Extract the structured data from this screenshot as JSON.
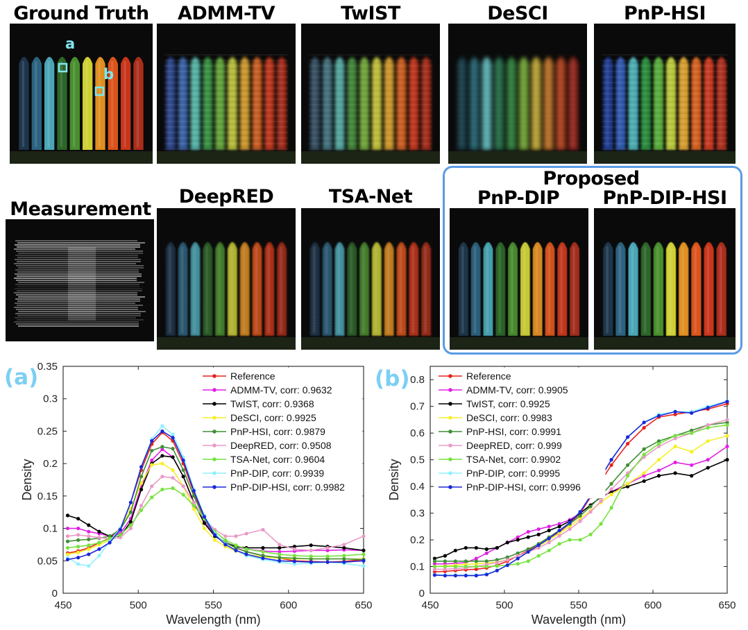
{
  "panels": {
    "ground_truth": "Ground Truth",
    "admm_tv": "ADMM-TV",
    "twist": "TwIST",
    "desci": "DeSCI",
    "pnp_hsi": "PnP-HSI",
    "measurement": "Measurement",
    "deepred": "DeepRED",
    "tsa_net": "TSA-Net",
    "proposed": "Proposed",
    "pnp_dip": "PnP-DIP",
    "pnp_dip_hsi": "PnP-DIP-HSI",
    "marker_a": "a",
    "marker_b": "b"
  },
  "colors": {
    "Reference": "#e8211c",
    "ADMM-TV": "#e020e6",
    "TwIST": "#000000",
    "DeSCI": "#f7ef2a",
    "PnP-HSI": "#3e8f35",
    "DeepRED": "#e99ac6",
    "TSA-Net": "#77e23f",
    "PnP-DIP": "#8ff0ff",
    "PnP-DIP-HSI": "#1a28d8"
  },
  "chart_data": [
    {
      "type": "line",
      "panel_label": "(a)",
      "xlabel": "Wavelength (nm)",
      "ylabel": "Density",
      "xlim": [
        450,
        650
      ],
      "ylim": [
        0,
        0.35
      ],
      "xticks": [
        "450",
        "500",
        "550",
        "600",
        "650"
      ],
      "yticks": [
        "0",
        "0.05",
        "0.1",
        "0.15",
        "0.2",
        "0.25",
        "0.3",
        "0.35"
      ],
      "x": [
        453,
        460,
        467,
        474,
        481,
        488,
        495,
        502,
        509,
        516,
        523,
        530,
        537,
        544,
        551,
        558,
        565,
        572,
        583,
        594,
        604,
        615,
        626,
        637,
        650
      ],
      "legend": [
        "Reference",
        "ADMM-TV, corr: 0.9632",
        "TwIST, corr: 0.9368",
        "DeSCI, corr: 0.9925",
        "PnP-HSI, corr: 0.9879",
        "DeepRED, corr: 0.9508",
        "TSA-Net, corr: 0.9604",
        "PnP-DIP, corr: 0.9939",
        "PnP-DIP-HSI, corr: 0.9982"
      ],
      "series": [
        {
          "name": "Reference",
          "values": [
            0.062,
            0.065,
            0.07,
            0.078,
            0.085,
            0.1,
            0.14,
            0.19,
            0.23,
            0.248,
            0.235,
            0.2,
            0.155,
            0.115,
            0.09,
            0.078,
            0.07,
            0.064,
            0.058,
            0.054,
            0.05,
            0.049,
            0.048,
            0.049,
            0.052
          ]
        },
        {
          "name": "ADMM-TV",
          "values": [
            0.1,
            0.1,
            0.095,
            0.092,
            0.088,
            0.092,
            0.115,
            0.165,
            0.205,
            0.222,
            0.21,
            0.18,
            0.14,
            0.11,
            0.09,
            0.078,
            0.072,
            0.068,
            0.065,
            0.064,
            0.065,
            0.066,
            0.066,
            0.067,
            0.066
          ]
        },
        {
          "name": "TwIST",
          "values": [
            0.12,
            0.115,
            0.105,
            0.095,
            0.088,
            0.088,
            0.11,
            0.16,
            0.2,
            0.212,
            0.21,
            0.18,
            0.14,
            0.108,
            0.088,
            0.078,
            0.072,
            0.07,
            0.07,
            0.07,
            0.072,
            0.074,
            0.072,
            0.07,
            0.066
          ]
        },
        {
          "name": "DeSCI",
          "values": [
            0.06,
            0.063,
            0.068,
            0.075,
            0.082,
            0.098,
            0.13,
            0.17,
            0.198,
            0.2,
            0.19,
            0.165,
            0.13,
            0.1,
            0.082,
            0.072,
            0.065,
            0.06,
            0.056,
            0.054,
            0.053,
            0.053,
            0.053,
            0.053,
            0.053
          ]
        },
        {
          "name": "PnP-HSI",
          "values": [
            0.08,
            0.082,
            0.083,
            0.085,
            0.088,
            0.098,
            0.125,
            0.18,
            0.22,
            0.226,
            0.223,
            0.19,
            0.15,
            0.115,
            0.09,
            0.078,
            0.07,
            0.064,
            0.058,
            0.055,
            0.054,
            0.053,
            0.053,
            0.053,
            0.052
          ]
        },
        {
          "name": "DeepRED",
          "values": [
            0.088,
            0.09,
            0.088,
            0.086,
            0.084,
            0.086,
            0.1,
            0.135,
            0.165,
            0.18,
            0.178,
            0.165,
            0.14,
            0.115,
            0.098,
            0.088,
            0.088,
            0.092,
            0.098,
            0.075,
            0.068,
            0.066,
            0.07,
            0.075,
            0.088
          ]
        },
        {
          "name": "TSA-Net",
          "values": [
            0.07,
            0.072,
            0.074,
            0.078,
            0.084,
            0.09,
            0.105,
            0.128,
            0.148,
            0.16,
            0.162,
            0.152,
            0.135,
            0.115,
            0.095,
            0.082,
            0.074,
            0.068,
            0.064,
            0.06,
            0.058,
            0.057,
            0.057,
            0.058,
            0.06
          ]
        },
        {
          "name": "PnP-DIP",
          "values": [
            0.055,
            0.045,
            0.042,
            0.058,
            0.08,
            0.1,
            0.14,
            0.195,
            0.238,
            0.258,
            0.245,
            0.21,
            0.16,
            0.12,
            0.092,
            0.076,
            0.066,
            0.058,
            0.052,
            0.048,
            0.045,
            0.046,
            0.048,
            0.046,
            0.042
          ]
        },
        {
          "name": "PnP-DIP-HSI",
          "values": [
            0.052,
            0.055,
            0.06,
            0.068,
            0.078,
            0.098,
            0.14,
            0.195,
            0.235,
            0.25,
            0.24,
            0.205,
            0.158,
            0.118,
            0.09,
            0.075,
            0.066,
            0.06,
            0.054,
            0.05,
            0.049,
            0.048,
            0.048,
            0.048,
            0.05
          ]
        }
      ]
    },
    {
      "type": "line",
      "panel_label": "(b)",
      "xlabel": "Wavelength (nm)",
      "ylabel": "Density",
      "xlim": [
        450,
        650
      ],
      "ylim": [
        0,
        0.85
      ],
      "xticks": [
        "450",
        "500",
        "550",
        "600",
        "650"
      ],
      "yticks": [
        "0",
        "0.1",
        "0.2",
        "0.3",
        "0.4",
        "0.5",
        "0.6",
        "0.7",
        "0.8"
      ],
      "x": [
        453,
        460,
        467,
        474,
        481,
        488,
        495,
        502,
        509,
        516,
        523,
        530,
        537,
        544,
        551,
        558,
        565,
        572,
        583,
        594,
        604,
        615,
        626,
        637,
        650
      ],
      "legend": [
        "Reference",
        "ADMM-TV, corr: 0.9905",
        "TwIST, corr: 0.9925",
        "DeSCI, corr: 0.9983",
        "PnP-HSI, corr: 0.9991",
        "DeepRED, corr: 0.999",
        "TSA-Net, corr: 0.9902",
        "PnP-DIP, corr: 0.9995",
        "PnP-DIP-HSI, corr: 0.9996"
      ],
      "series": [
        {
          "name": "Reference",
          "values": [
            0.08,
            0.082,
            0.085,
            0.088,
            0.09,
            0.095,
            0.105,
            0.12,
            0.14,
            0.16,
            0.18,
            0.205,
            0.23,
            0.26,
            0.3,
            0.36,
            0.42,
            0.48,
            0.56,
            0.62,
            0.66,
            0.67,
            0.68,
            0.69,
            0.71
          ]
        },
        {
          "name": "ADMM-TV",
          "values": [
            0.11,
            0.11,
            0.112,
            0.115,
            0.13,
            0.15,
            0.17,
            0.19,
            0.21,
            0.23,
            0.24,
            0.25,
            0.26,
            0.275,
            0.3,
            0.33,
            0.36,
            0.38,
            0.41,
            0.44,
            0.46,
            0.49,
            0.48,
            0.5,
            0.55
          ]
        },
        {
          "name": "TwIST",
          "values": [
            0.13,
            0.14,
            0.16,
            0.17,
            0.17,
            0.165,
            0.17,
            0.19,
            0.2,
            0.21,
            0.22,
            0.235,
            0.25,
            0.27,
            0.3,
            0.33,
            0.36,
            0.38,
            0.4,
            0.42,
            0.44,
            0.45,
            0.44,
            0.47,
            0.5
          ]
        },
        {
          "name": "DeSCI",
          "values": [
            0.1,
            0.102,
            0.105,
            0.108,
            0.11,
            0.113,
            0.117,
            0.125,
            0.14,
            0.155,
            0.175,
            0.2,
            0.225,
            0.25,
            0.28,
            0.31,
            0.34,
            0.37,
            0.41,
            0.45,
            0.5,
            0.55,
            0.53,
            0.57,
            0.59
          ]
        },
        {
          "name": "PnP-HSI",
          "values": [
            0.12,
            0.12,
            0.12,
            0.12,
            0.12,
            0.12,
            0.125,
            0.135,
            0.15,
            0.165,
            0.185,
            0.21,
            0.235,
            0.26,
            0.29,
            0.325,
            0.365,
            0.41,
            0.48,
            0.54,
            0.57,
            0.59,
            0.61,
            0.63,
            0.64
          ]
        },
        {
          "name": "DeepRED",
          "values": [
            0.09,
            0.09,
            0.092,
            0.095,
            0.1,
            0.108,
            0.115,
            0.125,
            0.14,
            0.155,
            0.17,
            0.19,
            0.215,
            0.24,
            0.27,
            0.305,
            0.345,
            0.39,
            0.45,
            0.51,
            0.55,
            0.58,
            0.6,
            0.63,
            0.65
          ]
        },
        {
          "name": "TSA-Net",
          "values": [
            0.1,
            0.1,
            0.1,
            0.1,
            0.1,
            0.1,
            0.102,
            0.105,
            0.11,
            0.12,
            0.14,
            0.16,
            0.185,
            0.2,
            0.2,
            0.22,
            0.26,
            0.32,
            0.44,
            0.52,
            0.56,
            0.59,
            0.6,
            0.62,
            0.63
          ]
        },
        {
          "name": "PnP-DIP",
          "values": [
            0.07,
            0.068,
            0.068,
            0.068,
            0.068,
            0.072,
            0.085,
            0.105,
            0.13,
            0.155,
            0.18,
            0.205,
            0.235,
            0.265,
            0.305,
            0.365,
            0.435,
            0.5,
            0.585,
            0.64,
            0.67,
            0.68,
            0.68,
            0.7,
            0.72
          ]
        },
        {
          "name": "PnP-DIP-HSI",
          "values": [
            0.068,
            0.066,
            0.066,
            0.066,
            0.066,
            0.07,
            0.085,
            0.105,
            0.13,
            0.155,
            0.18,
            0.205,
            0.235,
            0.265,
            0.305,
            0.365,
            0.435,
            0.5,
            0.585,
            0.64,
            0.665,
            0.68,
            0.675,
            0.695,
            0.718
          ]
        }
      ]
    }
  ]
}
